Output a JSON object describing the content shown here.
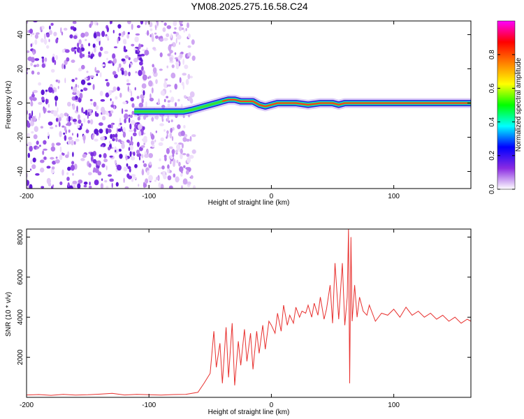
{
  "title": "YM08.2025.275.16.58.C24",
  "chart_data": [
    {
      "type": "heatmap",
      "name": "spectrogram",
      "xlabel": "Height of straight line (km)",
      "ylabel": "Frequency (Hz)",
      "xlim": [
        -200,
        163
      ],
      "ylim": [
        -50,
        48
      ],
      "xticks": [
        -200,
        -100,
        0,
        100
      ],
      "yticks": [
        40,
        20,
        0,
        -20,
        -40
      ],
      "noise_region_x": [
        -200,
        -63
      ],
      "signal_trace": {
        "x": [
          -112,
          -100,
          -85,
          -72,
          -65,
          -60,
          -55,
          -50,
          -45,
          -40,
          -35,
          -30,
          -25,
          -20,
          -15,
          -10,
          -5,
          0,
          5,
          10,
          20,
          30,
          40,
          50,
          55,
          60,
          80,
          100,
          130,
          163
        ],
        "y": [
          -5,
          -5,
          -5,
          -5,
          -4,
          -3,
          -2,
          -1,
          0,
          1,
          2,
          2,
          1,
          1,
          1,
          -1,
          -2,
          -1,
          0,
          0,
          0,
          -1,
          0,
          0,
          -1,
          0,
          0,
          0,
          0,
          0
        ]
      },
      "colorbar": {
        "label": "Normalized spectral amplitude",
        "range": [
          0,
          1
        ],
        "ticks": [
          0.0,
          0.2,
          0.4,
          0.6,
          0.8
        ],
        "colormap": [
          "#ffffff",
          "#8a2be2",
          "#0000ff",
          "#00ffff",
          "#00ff00",
          "#ffff00",
          "#ff8000",
          "#ff0000",
          "#ff00ff"
        ]
      }
    },
    {
      "type": "line",
      "name": "snr",
      "xlabel": "Height of straight line (km)",
      "ylabel": "SNR (10 * v/v)",
      "xlim": [
        -200,
        163
      ],
      "ylim": [
        0,
        8400
      ],
      "xticks": [
        -200,
        -100,
        0,
        100
      ],
      "yticks": [
        2000,
        4000,
        6000,
        8000
      ],
      "color": "#e8302e",
      "series": [
        {
          "name": "SNR",
          "x": [
            -200,
            -190,
            -180,
            -170,
            -160,
            -150,
            -140,
            -130,
            -120,
            -110,
            -100,
            -90,
            -80,
            -70,
            -60,
            -55,
            -50,
            -47,
            -45,
            -42,
            -40,
            -37,
            -35,
            -32,
            -30,
            -27,
            -25,
            -22,
            -20,
            -17,
            -15,
            -12,
            -10,
            -7,
            -5,
            -2,
            0,
            3,
            5,
            8,
            10,
            13,
            15,
            18,
            20,
            23,
            25,
            28,
            30,
            33,
            35,
            38,
            40,
            43,
            45,
            48,
            50,
            52,
            55,
            58,
            60,
            62,
            63,
            64,
            65,
            66,
            68,
            70,
            72,
            75,
            78,
            80,
            85,
            90,
            95,
            100,
            105,
            110,
            115,
            120,
            125,
            130,
            135,
            140,
            145,
            150,
            155,
            160,
            163
          ],
          "y": [
            120,
            140,
            100,
            150,
            110,
            130,
            160,
            200,
            120,
            150,
            130,
            110,
            140,
            150,
            250,
            700,
            1200,
            3300,
            1500,
            2700,
            700,
            3500,
            1000,
            3700,
            600,
            2800,
            1600,
            3400,
            1800,
            3200,
            1400,
            3300,
            2200,
            3600,
            2400,
            3800,
            3600,
            3200,
            4200,
            3300,
            4600,
            3600,
            4100,
            3700,
            4500,
            4000,
            4300,
            4200,
            4600,
            4000,
            4700,
            4100,
            5000,
            3900,
            4400,
            5600,
            3700,
            6700,
            3900,
            6700,
            3600,
            5000,
            8400,
            700,
            8000,
            3800,
            5600,
            4000,
            5000,
            4300,
            4100,
            4600,
            3800,
            4200,
            4100,
            4400,
            4000,
            4500,
            4100,
            4300,
            4000,
            4200,
            3900,
            4100,
            3800,
            4000,
            3700,
            3900,
            3800
          ]
        }
      ]
    }
  ]
}
